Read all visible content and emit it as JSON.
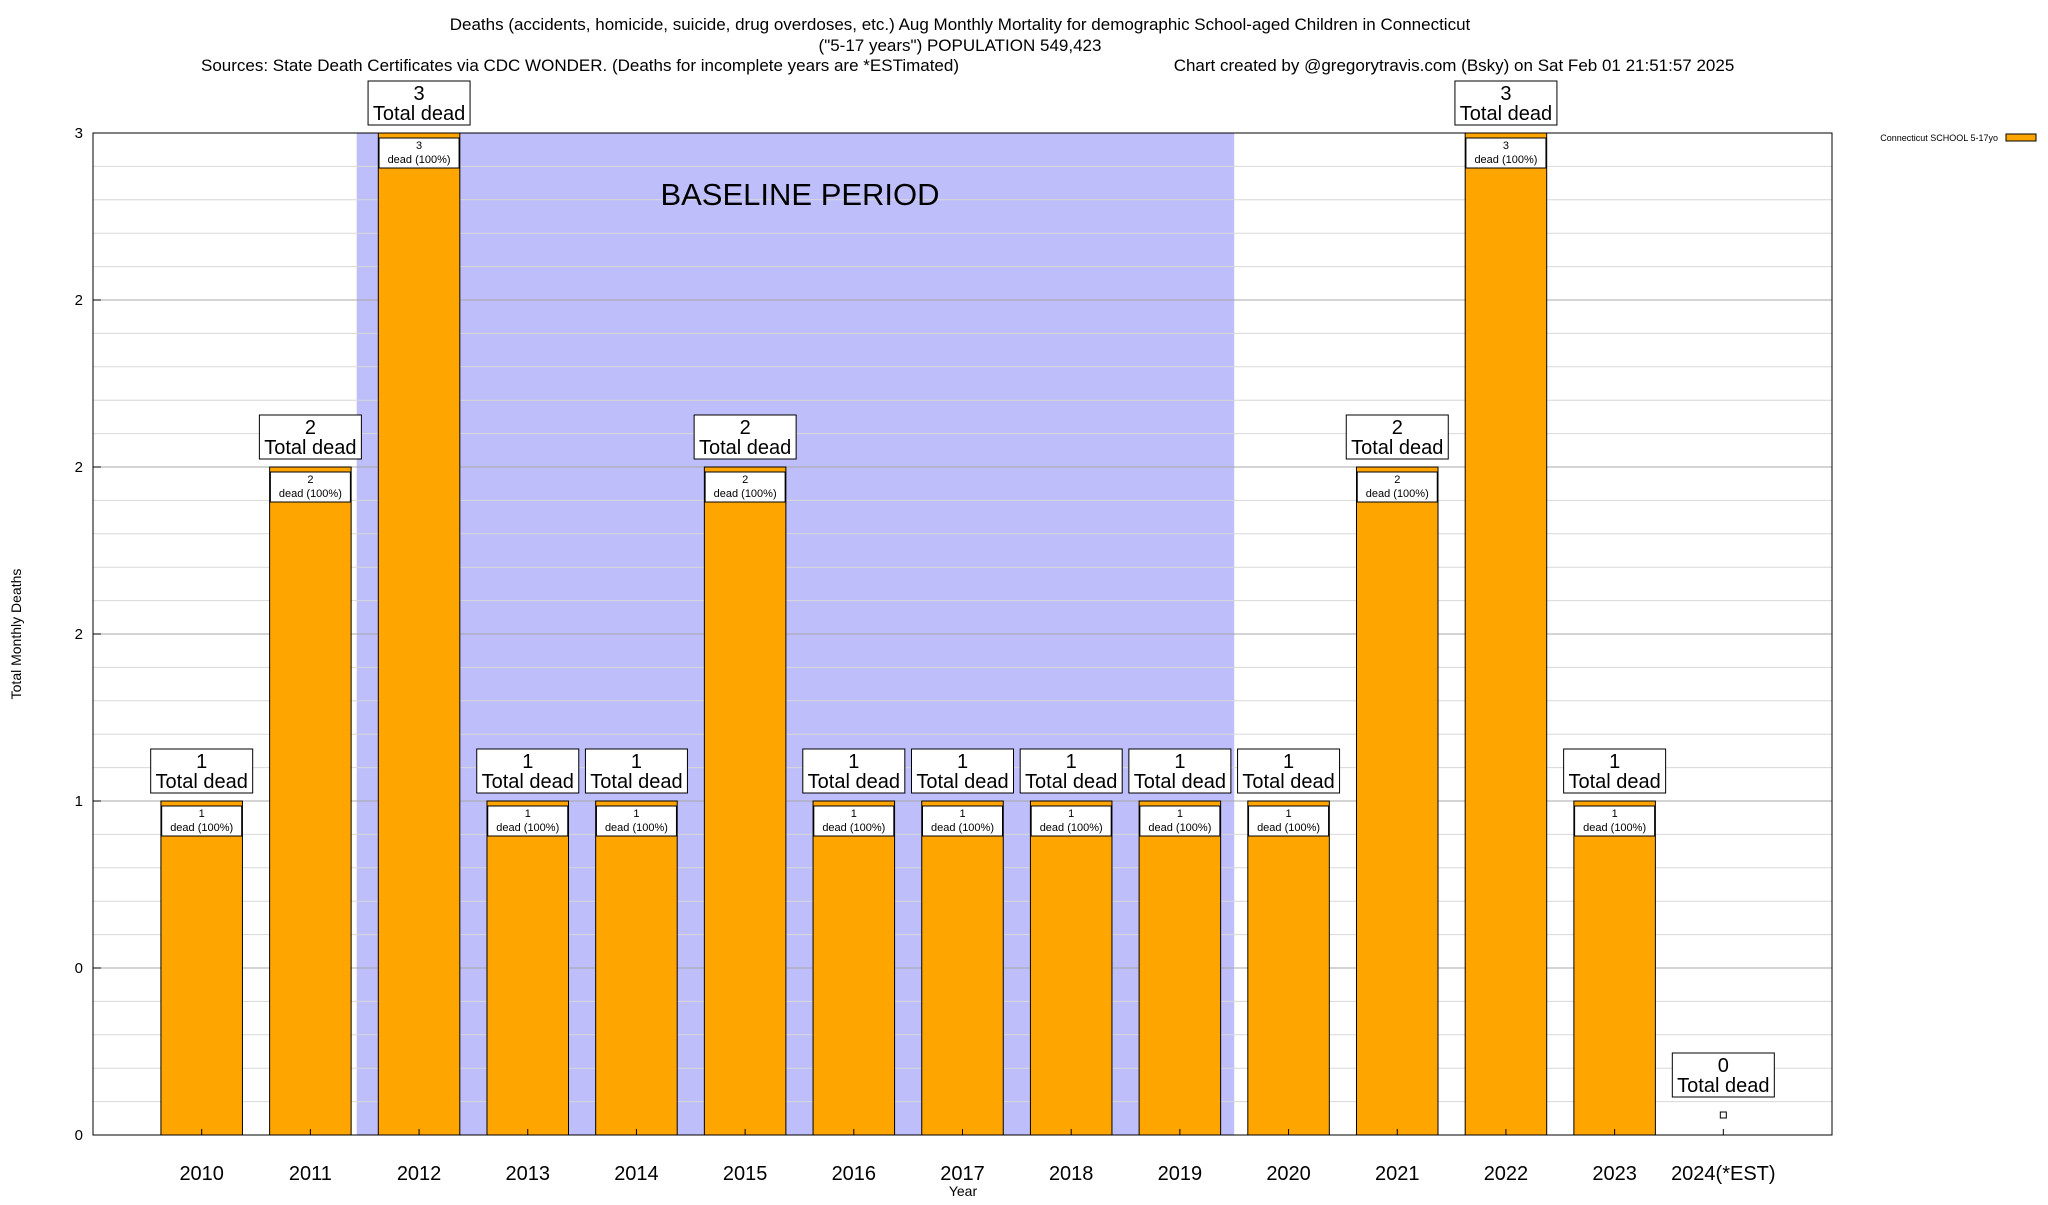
{
  "chart_data": {
    "type": "bar",
    "title_lines": [
      "Deaths (accidents, homicide, suicide, drug overdoses, etc.) Aug Monthly Mortality for demographic School-aged Children in Connecticut",
      "(\"5-17 years\") POPULATION 549,423"
    ],
    "sources_text": "Sources: State Death Certificates via CDC WONDER. (Deaths for incomplete years are *ESTimated)",
    "credit_text": "Chart created by @gregorytravis.com (Bsky) on Sat Feb 01 21:51:57 2025",
    "xlabel": "Year",
    "ylabel": "Total Monthly Deaths",
    "categories": [
      "2010",
      "2011",
      "2012",
      "2013",
      "2014",
      "2015",
      "2016",
      "2017",
      "2018",
      "2019",
      "2020",
      "2021",
      "2022",
      "2023",
      "2024(*EST)"
    ],
    "series": [
      {
        "name": "Connecticut SCHOOL 5-17yo",
        "color": "#FFA500",
        "values": [
          1,
          2,
          3,
          1,
          1,
          2,
          1,
          1,
          1,
          1,
          1,
          2,
          3,
          1,
          0
        ]
      }
    ],
    "total_labels": [
      "1",
      "2",
      "3",
      "1",
      "1",
      "2",
      "1",
      "1",
      "1",
      "1",
      "1",
      "2",
      "3",
      "1",
      "0"
    ],
    "total_suffix": "Total dead",
    "inner_count_labels": [
      "1",
      "2",
      "3",
      "1",
      "1",
      "2",
      "1",
      "1",
      "1",
      "1",
      "1",
      "2",
      "3",
      "1",
      ""
    ],
    "inner_suffix": "dead (100%)",
    "ylim": [
      0,
      3
    ],
    "ytick_values": [
      0,
      0.5,
      1,
      1.5,
      2,
      2.5,
      3
    ],
    "ytick_labels": [
      "0",
      "0",
      "1",
      "2",
      "2",
      "2",
      "3"
    ],
    "minor_grid_per_major": 5,
    "baseline": {
      "label": "BASELINE PERIOD",
      "start_category": "2012",
      "end_category": "2019",
      "color": "#BEBEFA"
    },
    "legend_position": "top-right",
    "grid": true
  }
}
